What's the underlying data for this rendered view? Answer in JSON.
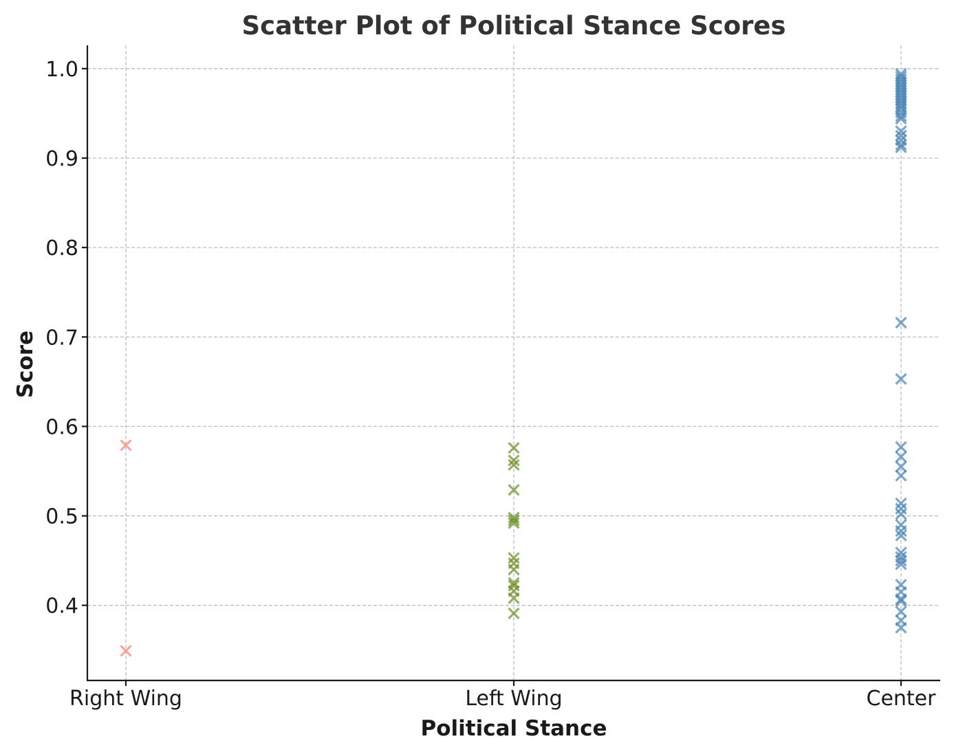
{
  "chart_data": {
    "type": "scatter",
    "title": "Scatter Plot of Political Stance Scores",
    "xlabel": "Political Stance",
    "ylabel": "Score",
    "categories": [
      "Right Wing",
      "Left Wing",
      "Center"
    ],
    "y_ticks": [
      "0.4",
      "0.5",
      "0.6",
      "0.7",
      "0.8",
      "0.9",
      "1.0"
    ],
    "ylim": [
      0.316,
      1.026
    ],
    "grid": true,
    "marker": "x",
    "series": [
      {
        "category": "Right Wing",
        "color": "#fa8072",
        "values": [
          0.579,
          0.349
        ]
      },
      {
        "category": "Left Wing",
        "color": "#6b8e23",
        "values": [
          0.576,
          0.562,
          0.557,
          0.529,
          0.498,
          0.495,
          0.492,
          0.453,
          0.447,
          0.44,
          0.425,
          0.422,
          0.416,
          0.408,
          0.391
        ]
      },
      {
        "category": "Center",
        "color": "#4682b4",
        "values": [
          0.994,
          0.991,
          0.988,
          0.985,
          0.982,
          0.979,
          0.976,
          0.973,
          0.97,
          0.967,
          0.964,
          0.961,
          0.958,
          0.955,
          0.951,
          0.947,
          0.944,
          0.93,
          0.925,
          0.92,
          0.915,
          0.912,
          0.716,
          0.653,
          0.577,
          0.566,
          0.555,
          0.545,
          0.514,
          0.508,
          0.502,
          0.49,
          0.483,
          0.478,
          0.459,
          0.454,
          0.45,
          0.446,
          0.423,
          0.415,
          0.407,
          0.405,
          0.393,
          0.383,
          0.375
        ]
      }
    ]
  }
}
